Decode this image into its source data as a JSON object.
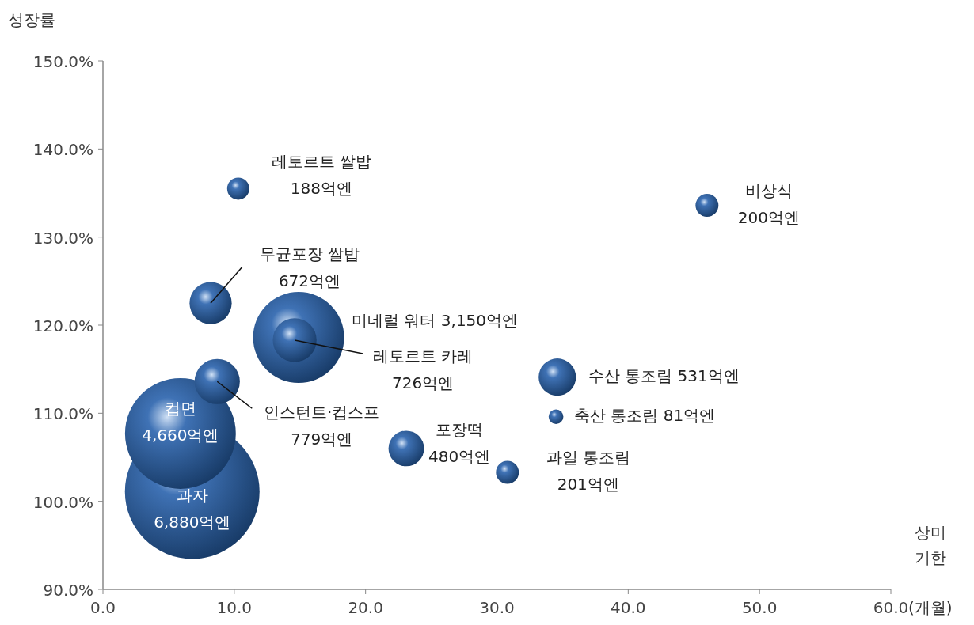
{
  "chart_data": {
    "type": "bubble",
    "ylabel": "성장률",
    "xlabel": "상미 기한 (개월)",
    "x": [
      10.3,
      46.0,
      8.2,
      14.9,
      14.6,
      8.7,
      5.9,
      6.8,
      34.6,
      34.5,
      23.1,
      30.8
    ],
    "values": [
      135.5,
      133.6,
      122.5,
      118.6,
      118.3,
      113.6,
      107.7,
      101.1,
      114.1,
      109.6,
      106.0,
      103.3
    ],
    "sizes": [
      0.027,
      0.029,
      0.098,
      0.458,
      0.106,
      0.113,
      0.677,
      1,
      0.077,
      0.012,
      0.07,
      0.029
    ],
    "color": "#3f72b5",
    "xlim": [
      0,
      60
    ],
    "ylim": [
      90,
      150
    ],
    "xticks": [
      {
        "value": 0,
        "label": "0.0"
      },
      {
        "value": 10,
        "label": "10.0"
      },
      {
        "value": 20,
        "label": "20.0"
      },
      {
        "value": 30,
        "label": "30.0"
      },
      {
        "value": 40,
        "label": "40.0"
      },
      {
        "value": 50,
        "label": "50.0"
      },
      {
        "value": 60,
        "label": "60.0"
      }
    ],
    "yticks": [
      {
        "value": 90,
        "label": "90.0%"
      },
      {
        "value": 100,
        "label": "100.0%"
      },
      {
        "value": 110,
        "label": "110.0%"
      },
      {
        "value": 120,
        "label": "120.0%"
      },
      {
        "value": 130,
        "label": "130.0%"
      },
      {
        "value": 140,
        "label": "140.0%"
      },
      {
        "value": 150,
        "label": "150.0%"
      }
    ],
    "annotations": [
      "레토르트 쌀밥\n188억엔",
      "비상식\n200억엔",
      {
        "text": "무균포장 쌀밥\n672억엔",
        "x": 8.2,
        "y": 122.5
      },
      "미네럴 워터 3,150억엔",
      {
        "text": "레토르트 카레\n726억엔",
        "x": 14.6,
        "y": 118.3
      },
      {
        "text": "인스턴트·컵스프\n779억엔",
        "x": 8.7,
        "y": 113.6
      },
      {
        "text": "컵면\n4,660억엔",
        "x": 5.9,
        "y": 107.7
      },
      {
        "text": "과자\n6,880억엔",
        "x": 6.8,
        "y": 101.1
      },
      "수산 통조림 531억엔",
      "축산 통조림 81억엔",
      "포장떡\n480억엔",
      "과일 통조림\n201억엔"
    ]
  }
}
